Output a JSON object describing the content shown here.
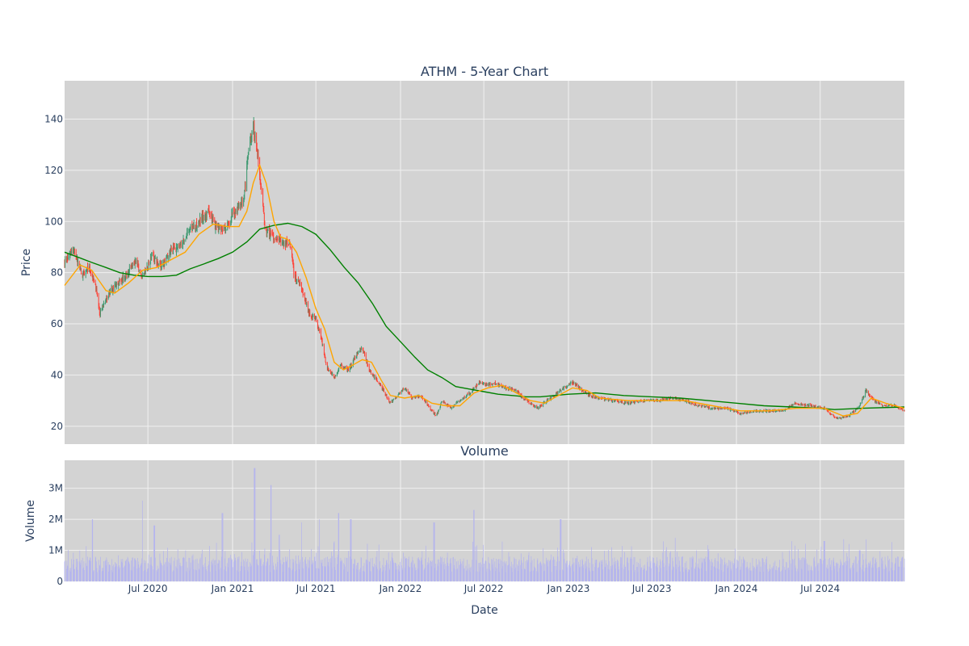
{
  "chart_data": [
    {
      "type": "candlestick",
      "title": "ATHM - 5-Year Chart",
      "ylabel": "Price",
      "ylim": [
        13,
        155
      ],
      "y_ticks": [
        20,
        40,
        60,
        80,
        100,
        120,
        140
      ],
      "x_range": [
        "2020-01-02",
        "2024-12-31"
      ],
      "grid": true,
      "legend": "none",
      "colors": {
        "increasing": "#3d9970",
        "decreasing": "#ff4136",
        "ma_short": "#ffa500",
        "ma_long": "#008000",
        "plot_bg": "#d3d3d3",
        "grid": "#f0f0f0"
      },
      "price_path": [
        [
          "2020-01-02",
          84
        ],
        [
          "2020-01-20",
          89
        ],
        [
          "2020-02-10",
          79
        ],
        [
          "2020-02-25",
          82
        ],
        [
          "2020-03-10",
          74
        ],
        [
          "2020-03-18",
          64
        ],
        [
          "2020-04-01",
          70
        ],
        [
          "2020-04-25",
          76
        ],
        [
          "2020-05-15",
          79
        ],
        [
          "2020-06-05",
          85
        ],
        [
          "2020-06-20",
          78
        ],
        [
          "2020-07-10",
          87
        ],
        [
          "2020-07-30",
          82
        ],
        [
          "2020-08-20",
          89
        ],
        [
          "2020-09-10",
          90
        ],
        [
          "2020-10-01",
          97
        ],
        [
          "2020-10-20",
          100
        ],
        [
          "2020-11-10",
          104
        ],
        [
          "2020-11-25",
          98
        ],
        [
          "2020-12-15",
          97
        ],
        [
          "2021-01-05",
          104
        ],
        [
          "2021-01-25",
          108
        ],
        [
          "2021-02-05",
          128
        ],
        [
          "2021-02-15",
          138
        ],
        [
          "2021-02-25",
          125
        ],
        [
          "2021-03-05",
          112
        ],
        [
          "2021-03-12",
          98
        ],
        [
          "2021-03-25",
          95
        ],
        [
          "2021-04-10",
          93
        ],
        [
          "2021-04-25",
          91
        ],
        [
          "2021-05-05",
          92
        ],
        [
          "2021-05-15",
          79
        ],
        [
          "2021-06-01",
          74
        ],
        [
          "2021-06-15",
          64
        ],
        [
          "2021-07-01",
          62
        ],
        [
          "2021-07-15",
          52
        ],
        [
          "2021-07-25",
          43
        ],
        [
          "2021-08-10",
          39
        ],
        [
          "2021-08-25",
          44
        ],
        [
          "2021-09-10",
          42
        ],
        [
          "2021-09-25",
          47
        ],
        [
          "2021-10-10",
          51
        ],
        [
          "2021-10-25",
          42
        ],
        [
          "2021-11-10",
          38
        ],
        [
          "2021-11-25",
          34
        ],
        [
          "2021-12-10",
          29
        ],
        [
          "2021-12-25",
          32
        ],
        [
          "2022-01-10",
          35
        ],
        [
          "2022-01-25",
          31
        ],
        [
          "2022-02-15",
          32
        ],
        [
          "2022-03-10",
          26
        ],
        [
          "2022-03-20",
          24
        ],
        [
          "2022-04-01",
          30
        ],
        [
          "2022-04-20",
          27
        ],
        [
          "2022-05-10",
          30
        ],
        [
          "2022-06-01",
          33
        ],
        [
          "2022-06-20",
          37
        ],
        [
          "2022-07-10",
          36
        ],
        [
          "2022-07-25",
          37
        ],
        [
          "2022-08-15",
          35
        ],
        [
          "2022-09-10",
          34
        ],
        [
          "2022-09-25",
          31
        ],
        [
          "2022-10-10",
          29
        ],
        [
          "2022-10-25",
          27
        ],
        [
          "2022-11-15",
          30
        ],
        [
          "2022-12-01",
          32
        ],
        [
          "2022-12-20",
          35
        ],
        [
          "2023-01-10",
          37
        ],
        [
          "2023-01-25",
          35
        ],
        [
          "2023-02-15",
          32
        ],
        [
          "2023-03-10",
          31
        ],
        [
          "2023-04-10",
          30
        ],
        [
          "2023-05-10",
          29
        ],
        [
          "2023-06-10",
          30
        ],
        [
          "2023-07-10",
          30
        ],
        [
          "2023-08-10",
          31
        ],
        [
          "2023-09-10",
          30
        ],
        [
          "2023-10-10",
          28
        ],
        [
          "2023-11-10",
          27
        ],
        [
          "2023-12-10",
          27
        ],
        [
          "2024-01-10",
          25
        ],
        [
          "2024-02-10",
          26
        ],
        [
          "2024-03-10",
          26
        ],
        [
          "2024-04-10",
          26
        ],
        [
          "2024-05-10",
          29
        ],
        [
          "2024-06-10",
          28
        ],
        [
          "2024-07-10",
          27
        ],
        [
          "2024-08-05",
          23
        ],
        [
          "2024-09-01",
          24
        ],
        [
          "2024-09-25",
          28
        ],
        [
          "2024-10-08",
          34
        ],
        [
          "2024-10-25",
          30
        ],
        [
          "2024-11-15",
          28
        ],
        [
          "2024-12-10",
          28
        ],
        [
          "2024-12-31",
          26
        ]
      ],
      "ma_short": [
        [
          "2020-01-02",
          75
        ],
        [
          "2020-02-05",
          83
        ],
        [
          "2020-03-01",
          81
        ],
        [
          "2020-04-01",
          73
        ],
        [
          "2020-04-20",
          72
        ],
        [
          "2020-05-20",
          76
        ],
        [
          "2020-06-20",
          81
        ],
        [
          "2020-07-20",
          82
        ],
        [
          "2020-08-20",
          85
        ],
        [
          "2020-09-20",
          88
        ],
        [
          "2020-10-20",
          95
        ],
        [
          "2020-11-20",
          99
        ],
        [
          "2020-12-20",
          98
        ],
        [
          "2021-01-15",
          98
        ],
        [
          "2021-02-01",
          104
        ],
        [
          "2021-02-15",
          115
        ],
        [
          "2021-03-01",
          122
        ],
        [
          "2021-03-15",
          115
        ],
        [
          "2021-04-01",
          100
        ],
        [
          "2021-04-15",
          94
        ],
        [
          "2021-05-01",
          93
        ],
        [
          "2021-05-20",
          88
        ],
        [
          "2021-06-10",
          78
        ],
        [
          "2021-07-01",
          66
        ],
        [
          "2021-07-20",
          58
        ],
        [
          "2021-08-10",
          45
        ],
        [
          "2021-08-30",
          42
        ],
        [
          "2021-09-20",
          44
        ],
        [
          "2021-10-10",
          46
        ],
        [
          "2021-10-30",
          45
        ],
        [
          "2021-11-20",
          38
        ],
        [
          "2021-12-10",
          32
        ],
        [
          "2022-01-10",
          31
        ],
        [
          "2022-02-10",
          32
        ],
        [
          "2022-03-10",
          29
        ],
        [
          "2022-04-10",
          28
        ],
        [
          "2022-05-10",
          28
        ],
        [
          "2022-06-10",
          33
        ],
        [
          "2022-07-10",
          35
        ],
        [
          "2022-08-10",
          36
        ],
        [
          "2022-09-10",
          33
        ],
        [
          "2022-10-10",
          30
        ],
        [
          "2022-11-10",
          29
        ],
        [
          "2022-12-10",
          32
        ],
        [
          "2023-01-10",
          35
        ],
        [
          "2023-02-10",
          34
        ],
        [
          "2023-03-10",
          31
        ],
        [
          "2023-05-10",
          30
        ],
        [
          "2023-07-10",
          30
        ],
        [
          "2023-09-10",
          30
        ],
        [
          "2023-11-10",
          28
        ],
        [
          "2024-01-10",
          26
        ],
        [
          "2024-03-10",
          26
        ],
        [
          "2024-05-10",
          27
        ],
        [
          "2024-07-10",
          27
        ],
        [
          "2024-08-20",
          24
        ],
        [
          "2024-09-20",
          25
        ],
        [
          "2024-10-20",
          31
        ],
        [
          "2024-11-20",
          29
        ],
        [
          "2024-12-31",
          27
        ]
      ],
      "ma_long": [
        [
          "2020-01-02",
          88
        ],
        [
          "2020-02-01",
          86
        ],
        [
          "2020-03-01",
          84
        ],
        [
          "2020-04-01",
          82
        ],
        [
          "2020-05-01",
          80
        ],
        [
          "2020-06-01",
          79
        ],
        [
          "2020-07-01",
          78.5
        ],
        [
          "2020-08-01",
          78.5
        ],
        [
          "2020-09-01",
          79
        ],
        [
          "2020-10-01",
          81.5
        ],
        [
          "2020-11-01",
          83.5
        ],
        [
          "2020-12-01",
          85.5
        ],
        [
          "2021-01-01",
          88
        ],
        [
          "2021-02-01",
          92
        ],
        [
          "2021-03-01",
          97
        ],
        [
          "2021-04-01",
          98.5
        ],
        [
          "2021-05-01",
          99.3
        ],
        [
          "2021-06-01",
          98
        ],
        [
          "2021-07-01",
          95
        ],
        [
          "2021-08-01",
          89
        ],
        [
          "2021-09-01",
          82
        ],
        [
          "2021-10-01",
          76
        ],
        [
          "2021-11-01",
          68
        ],
        [
          "2021-12-01",
          59
        ],
        [
          "2022-01-01",
          53
        ],
        [
          "2022-02-01",
          47
        ],
        [
          "2022-03-01",
          42
        ],
        [
          "2022-04-01",
          39
        ],
        [
          "2022-05-01",
          35.5
        ],
        [
          "2022-06-01",
          34.5
        ],
        [
          "2022-07-01",
          33.5
        ],
        [
          "2022-08-01",
          32.5
        ],
        [
          "2022-09-01",
          32
        ],
        [
          "2022-10-01",
          31.5
        ],
        [
          "2022-11-01",
          31.5
        ],
        [
          "2022-12-01",
          32
        ],
        [
          "2023-01-01",
          32.5
        ],
        [
          "2023-03-01",
          33
        ],
        [
          "2023-05-01",
          32
        ],
        [
          "2023-07-01",
          31.5
        ],
        [
          "2023-09-01",
          31
        ],
        [
          "2023-11-01",
          30
        ],
        [
          "2024-01-01",
          29
        ],
        [
          "2024-03-01",
          28
        ],
        [
          "2024-05-01",
          27.5
        ],
        [
          "2024-07-01",
          27
        ],
        [
          "2024-08-01",
          26.5
        ],
        [
          "2024-10-01",
          27
        ],
        [
          "2024-12-31",
          27.5
        ]
      ]
    },
    {
      "type": "bar",
      "title": "Volume",
      "xlabel": "Date",
      "ylabel": "Volume",
      "ylim": [
        0,
        3900000
      ],
      "y_ticks": [
        {
          "value": 0,
          "label": "0"
        },
        {
          "value": 1000000,
          "label": "1M"
        },
        {
          "value": 2000000,
          "label": "2M"
        },
        {
          "value": 3000000,
          "label": "3M"
        }
      ],
      "x_ticks": [
        {
          "date": "2020-07-01",
          "label": "Jul 2020"
        },
        {
          "date": "2021-01-01",
          "label": "Jan 2021"
        },
        {
          "date": "2021-07-01",
          "label": "Jul 2021"
        },
        {
          "date": "2022-01-01",
          "label": "Jan 2022"
        },
        {
          "date": "2022-07-01",
          "label": "Jul 2022"
        },
        {
          "date": "2023-01-01",
          "label": "Jan 2023"
        },
        {
          "date": "2023-07-01",
          "label": "Jul 2023"
        },
        {
          "date": "2024-01-01",
          "label": "Jan 2024"
        },
        {
          "date": "2024-07-01",
          "label": "Jul 2024"
        }
      ],
      "grid": true,
      "color": "#b4b4ee",
      "volume_spikes": [
        [
          "2020-03-02",
          2000000
        ],
        [
          "2020-06-20",
          2600000
        ],
        [
          "2020-07-15",
          1800000
        ],
        [
          "2020-12-10",
          2200000
        ],
        [
          "2021-02-18",
          3650000
        ],
        [
          "2021-03-26",
          3100000
        ],
        [
          "2021-04-12",
          1500000
        ],
        [
          "2021-05-30",
          1900000
        ],
        [
          "2021-07-10",
          2000000
        ],
        [
          "2021-08-20",
          2200000
        ],
        [
          "2021-09-15",
          2000000
        ],
        [
          "2022-03-15",
          1900000
        ],
        [
          "2022-06-10",
          2300000
        ],
        [
          "2022-12-15",
          2000000
        ],
        [
          "2023-08-20",
          1400000
        ],
        [
          "2024-07-10",
          1300000
        ],
        [
          "2024-09-25",
          1000000
        ]
      ]
    }
  ]
}
